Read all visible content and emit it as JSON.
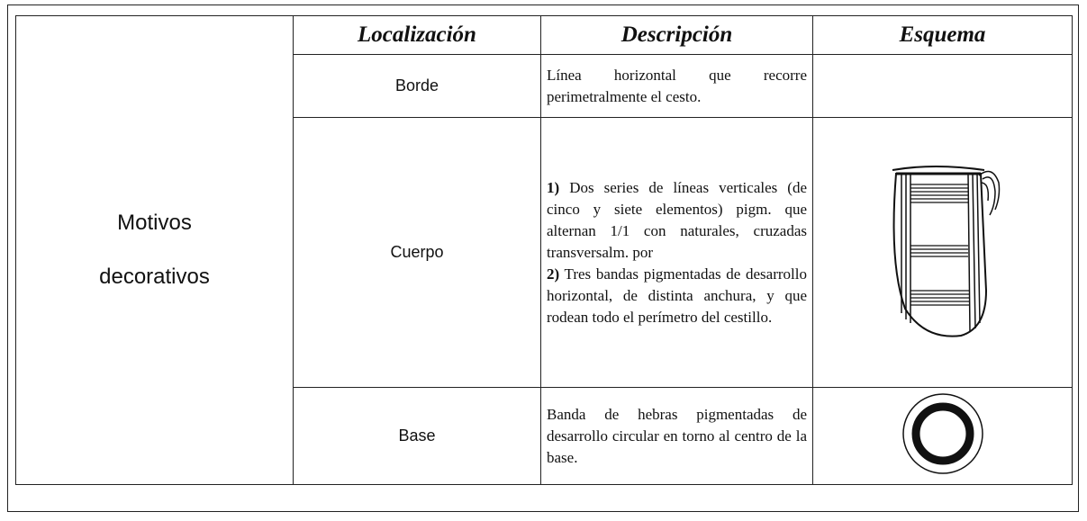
{
  "table": {
    "header": [
      "Localización",
      "Descripción",
      "Esquema"
    ],
    "group": [
      "Motivos",
      "decorativos"
    ],
    "rows": [
      {
        "location": "Borde",
        "description": [
          {
            "text": "Línea horizontal que recorre perimetralmente el cesto."
          }
        ]
      },
      {
        "location": "Cuerpo",
        "description": [
          {
            "number": "1)",
            "text": "Dos series de líneas verticales (de cinco y siete elementos) pigm. que alternan 1/1 con naturales, cruzadas transversalm. por"
          },
          {
            "number": "2)",
            "text": "Tres bandas pigmentadas de desarrollo horizontal, de distinta anchura, y que rodean todo el perímetro del cestillo."
          }
        ]
      },
      {
        "location": "Base",
        "description": [
          {
            "text": "Banda de hebras pigmentadas de desarrollo circular en torno al centro de la base."
          }
        ]
      }
    ]
  }
}
